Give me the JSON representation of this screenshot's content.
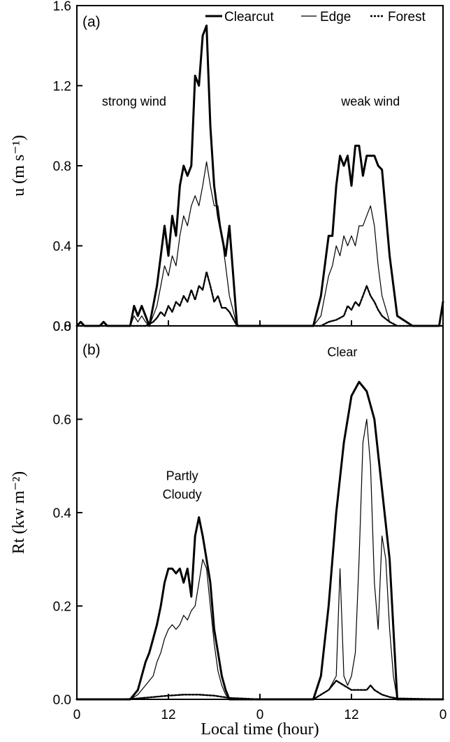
{
  "chart_data": [
    {
      "type": "line",
      "panel_label": "(a)",
      "ylabel": "u (m s⁻¹)",
      "xlabel": "",
      "xlim": [
        0,
        48
      ],
      "ylim": [
        0,
        1.6
      ],
      "x_ticks": [
        0,
        12,
        24,
        36,
        48
      ],
      "x_tick_labels": [
        "0",
        "12",
        "0",
        "12",
        "0"
      ],
      "y_ticks": [
        0,
        0.4,
        0.8,
        1.2,
        1.6
      ],
      "y_tick_labels": [
        "0.0",
        "0.4",
        "0.8",
        "1.2",
        "1.6"
      ],
      "legend": {
        "position": "top-right",
        "entries": [
          "Clearcut",
          "Edge",
          "Forest"
        ]
      },
      "annotations": [
        {
          "text": "strong wind",
          "x": 7.5,
          "y": 1.1
        },
        {
          "text": "weak wind",
          "x": 38.5,
          "y": 1.1
        }
      ],
      "series": [
        {
          "name": "Clearcut",
          "x": [
            0,
            0.5,
            1,
            1.5,
            2,
            3,
            3.5,
            4,
            5,
            6,
            7,
            7.5,
            8,
            8.5,
            9,
            9.5,
            10,
            10.5,
            11,
            11.5,
            12,
            12.5,
            13,
            13.5,
            14,
            14.5,
            15,
            15.5,
            16,
            16.5,
            17,
            17.5,
            18,
            18.5,
            19,
            19.5,
            20,
            21,
            22,
            24,
            27,
            30,
            31,
            32,
            32.5,
            33,
            33.5,
            34,
            34.5,
            35,
            35.5,
            36,
            36.5,
            37,
            37.5,
            38,
            38.5,
            39,
            39.5,
            40,
            41,
            42,
            44,
            46,
            47.5,
            48
          ],
          "y": [
            0,
            0.02,
            0,
            0,
            0,
            0,
            0.02,
            0,
            0,
            0,
            0,
            0.1,
            0.05,
            0.1,
            0.05,
            0,
            0.1,
            0.2,
            0.35,
            0.5,
            0.35,
            0.55,
            0.45,
            0.7,
            0.8,
            0.75,
            0.8,
            1.25,
            1.2,
            1.45,
            1.5,
            1.0,
            0.7,
            0.55,
            0.45,
            0.35,
            0.5,
            0,
            0,
            0,
            0,
            0,
            0,
            0.15,
            0.3,
            0.45,
            0.45,
            0.7,
            0.85,
            0.8,
            0.85,
            0.7,
            0.9,
            0.9,
            0.75,
            0.85,
            0.85,
            0.85,
            0.8,
            0.78,
            0.35,
            0.05,
            0,
            0,
            0,
            0.12
          ]
        },
        {
          "name": "Edge",
          "x": [
            0,
            1,
            2,
            3,
            4,
            5,
            6,
            7,
            7.5,
            8,
            8.5,
            9,
            9.5,
            10,
            10.5,
            11,
            11.5,
            12,
            12.5,
            13,
            13.5,
            14,
            14.5,
            15,
            15.5,
            16,
            16.5,
            17,
            17.5,
            18,
            18.5,
            19,
            19.5,
            20,
            21,
            22,
            24,
            27,
            30,
            31,
            32,
            32.5,
            33,
            33.5,
            34,
            34.5,
            35,
            35.5,
            36,
            36.5,
            37,
            37.5,
            38,
            38.5,
            39,
            39.5,
            40,
            41,
            42,
            44,
            46,
            48
          ],
          "y": [
            0,
            0,
            0,
            0,
            0,
            0,
            0,
            0,
            0.05,
            0.02,
            0.05,
            0.02,
            0,
            0.05,
            0.1,
            0.2,
            0.3,
            0.25,
            0.35,
            0.3,
            0.45,
            0.55,
            0.5,
            0.6,
            0.65,
            0.6,
            0.7,
            0.82,
            0.7,
            0.6,
            0.6,
            0.45,
            0.3,
            0.15,
            0,
            0,
            0,
            0,
            0,
            0,
            0.05,
            0.15,
            0.25,
            0.3,
            0.4,
            0.35,
            0.45,
            0.4,
            0.45,
            0.4,
            0.5,
            0.5,
            0.55,
            0.6,
            0.5,
            0.3,
            0.15,
            0.02,
            0,
            0,
            0,
            0
          ]
        },
        {
          "name": "Forest",
          "x": [
            0,
            1,
            2,
            3,
            4,
            5,
            6,
            7,
            8,
            9,
            10,
            10.5,
            11,
            11.5,
            12,
            12.5,
            13,
            13.5,
            14,
            14.5,
            15,
            15.5,
            16,
            16.5,
            17,
            17.5,
            18,
            18.5,
            19,
            19.5,
            20,
            21,
            22,
            24,
            27,
            30,
            32,
            33,
            34,
            35,
            35.5,
            36,
            36.5,
            37,
            37.5,
            38,
            38.5,
            39,
            39.5,
            40,
            41,
            42,
            44,
            46,
            48
          ],
          "y": [
            0,
            0,
            0,
            0,
            0,
            0,
            0,
            0,
            0,
            0,
            0.02,
            0.04,
            0.07,
            0.05,
            0.1,
            0.07,
            0.12,
            0.1,
            0.15,
            0.12,
            0.18,
            0.13,
            0.2,
            0.18,
            0.27,
            0.2,
            0.12,
            0.15,
            0.09,
            0.09,
            0.07,
            0,
            0,
            0,
            0,
            0,
            0,
            0.02,
            0.03,
            0.05,
            0.1,
            0.08,
            0.12,
            0.1,
            0.15,
            0.2,
            0.15,
            0.12,
            0.08,
            0.05,
            0.02,
            0,
            0,
            0,
            0
          ]
        }
      ]
    },
    {
      "type": "line",
      "panel_label": "(b)",
      "ylabel": "Rt (kw m⁻²)",
      "xlabel": "Local time (hour)",
      "xlim": [
        0,
        48
      ],
      "ylim": [
        0,
        0.8
      ],
      "x_ticks": [
        0,
        12,
        24,
        36,
        48
      ],
      "x_tick_labels": [
        "0",
        "12",
        "0",
        "12",
        "0"
      ],
      "y_ticks": [
        0,
        0.2,
        0.4,
        0.6,
        0.8
      ],
      "y_tick_labels": [
        "0.0",
        "0.2",
        "0.4",
        "0.6",
        "0.8"
      ],
      "annotations": [
        {
          "text": "Partly",
          "x": 13.8,
          "y": 0.47
        },
        {
          "text": "Cloudy",
          "x": 13.8,
          "y": 0.43
        },
        {
          "text": "Clear",
          "x": 34.8,
          "y": 0.735
        }
      ],
      "series": [
        {
          "name": "Clearcut",
          "x": [
            0,
            6,
            7,
            8,
            8.5,
            9,
            9.5,
            10,
            10.5,
            11,
            11.5,
            12,
            12.5,
            13,
            13.5,
            14,
            14.5,
            15,
            15.5,
            16,
            16.5,
            17,
            17.5,
            18,
            18.5,
            19,
            19.5,
            20,
            24,
            31,
            32,
            33,
            34,
            35,
            36,
            37,
            38,
            39,
            40,
            41,
            42,
            48
          ],
          "y": [
            0,
            0,
            0,
            0.02,
            0.05,
            0.08,
            0.1,
            0.13,
            0.16,
            0.2,
            0.25,
            0.28,
            0.28,
            0.27,
            0.28,
            0.25,
            0.28,
            0.22,
            0.35,
            0.39,
            0.35,
            0.3,
            0.25,
            0.15,
            0.1,
            0.05,
            0.02,
            0,
            0,
            0,
            0.05,
            0.2,
            0.4,
            0.55,
            0.65,
            0.68,
            0.66,
            0.6,
            0.45,
            0.3,
            0,
            0
          ]
        },
        {
          "name": "Edge",
          "x": [
            0,
            6,
            7,
            8,
            8.5,
            9,
            9.5,
            10,
            10.5,
            11,
            11.5,
            12,
            12.5,
            13,
            13.5,
            14,
            14.5,
            15,
            15.5,
            16,
            16.5,
            17,
            17.5,
            18,
            18.5,
            19,
            19.5,
            20,
            24,
            31,
            32,
            33,
            34,
            34.5,
            35,
            35.5,
            36,
            36.5,
            37,
            37.5,
            38,
            38.5,
            39,
            39.5,
            40,
            40.5,
            41,
            41.5,
            42,
            48
          ],
          "y": [
            0,
            0,
            0,
            0.01,
            0.02,
            0.03,
            0.04,
            0.05,
            0.08,
            0.1,
            0.13,
            0.15,
            0.16,
            0.15,
            0.16,
            0.18,
            0.17,
            0.19,
            0.2,
            0.25,
            0.3,
            0.28,
            0.2,
            0.12,
            0.06,
            0.03,
            0.01,
            0,
            0,
            0,
            0.01,
            0.02,
            0.05,
            0.28,
            0.05,
            0.03,
            0.05,
            0.1,
            0.3,
            0.55,
            0.6,
            0.5,
            0.25,
            0.15,
            0.35,
            0.3,
            0.15,
            0.05,
            0,
            0
          ]
        },
        {
          "name": "Forest",
          "x": [
            0,
            6,
            8,
            10,
            12,
            14,
            16,
            18,
            20,
            24,
            31,
            32,
            33,
            34,
            35,
            36,
            37,
            38,
            38.5,
            39,
            40,
            41,
            42,
            48
          ],
          "y": [
            0,
            0,
            0.002,
            0.005,
            0.008,
            0.01,
            0.01,
            0.008,
            0.003,
            0,
            0,
            0.01,
            0.02,
            0.04,
            0.03,
            0.02,
            0.02,
            0.02,
            0.03,
            0.02,
            0.01,
            0.005,
            0.002,
            0
          ]
        }
      ]
    }
  ]
}
